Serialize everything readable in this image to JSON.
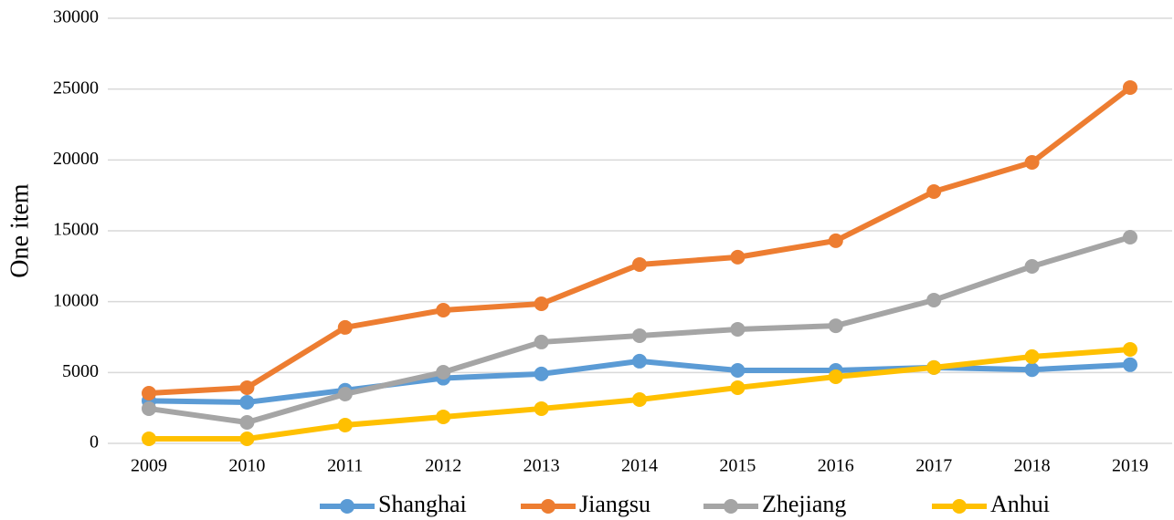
{
  "chart_data": {
    "type": "line",
    "y_label": "One item",
    "categories": [
      "2009",
      "2010",
      "2011",
      "2012",
      "2013",
      "2014",
      "2015",
      "2016",
      "2017",
      "2018",
      "2019"
    ],
    "series": [
      {
        "name": "Shanghai",
        "color": "#5b9bd5",
        "values": [
          3000,
          2900,
          3750,
          4600,
          4900,
          5800,
          5150,
          5150,
          5350,
          5200,
          5550
        ]
      },
      {
        "name": "Jiangsu",
        "color": "#ed7d31",
        "values": [
          3540,
          3930,
          8180,
          9400,
          9850,
          12620,
          13140,
          14300,
          17770,
          19830,
          25110
        ]
      },
      {
        "name": "Zhejiang",
        "color": "#a5a5a5",
        "values": [
          2450,
          1480,
          3480,
          5020,
          7150,
          7600,
          8050,
          8300,
          10110,
          12490,
          14550
        ]
      },
      {
        "name": "Anhui",
        "color": "#ffc000",
        "values": [
          320,
          320,
          1290,
          1870,
          2450,
          3090,
          3930,
          4700,
          5350,
          6120,
          6630
        ]
      }
    ],
    "ylim": [
      0,
      30000
    ],
    "yticks": [
      0,
      5000,
      10000,
      15000,
      20000,
      25000,
      30000
    ],
    "grid": true,
    "legend": "bottom"
  }
}
